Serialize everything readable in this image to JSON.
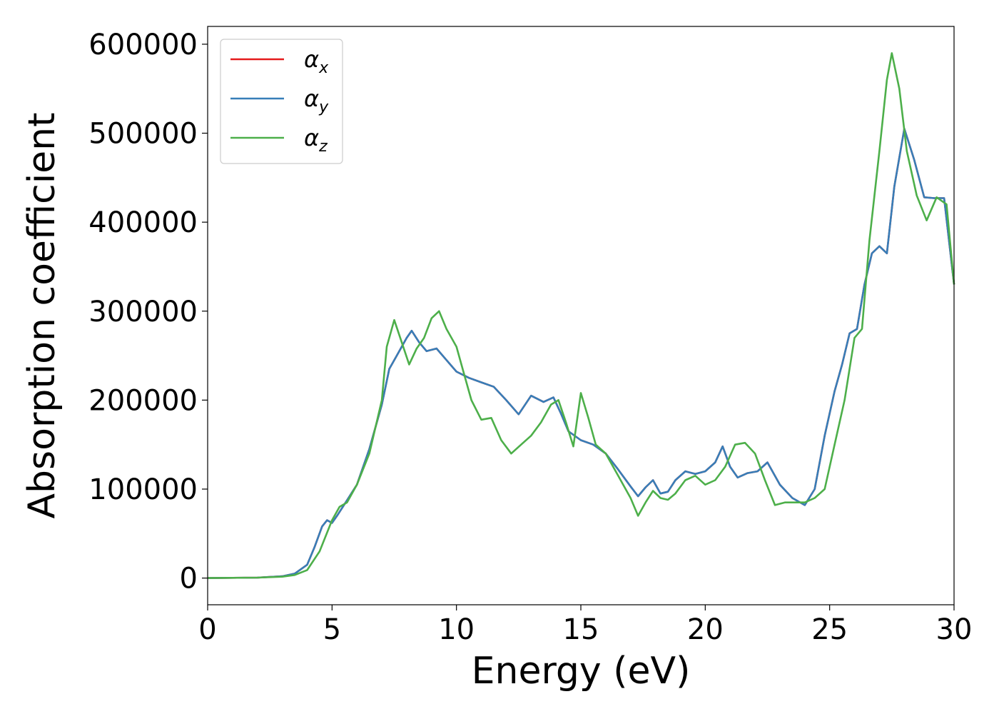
{
  "chart_data": {
    "type": "line",
    "title": "",
    "xlabel": "Energy (eV)",
    "ylabel": "Absorption coefficient",
    "xlim": [
      0,
      30
    ],
    "ylim": [
      -30000,
      620000
    ],
    "xticks": [
      0,
      5,
      10,
      15,
      20,
      25,
      30
    ],
    "yticks": [
      0,
      100000,
      200000,
      300000,
      400000,
      500000,
      600000
    ],
    "xtick_labels": [
      "0",
      "5",
      "10",
      "15",
      "20",
      "25",
      "30"
    ],
    "ytick_labels": [
      "0",
      "100000",
      "200000",
      "300000",
      "400000",
      "500000",
      "600000"
    ],
    "grid": false,
    "legend": {
      "placement": "top-left"
    },
    "series": [
      {
        "name": "α_x",
        "color": "#e41a1c",
        "x": [
          0,
          2,
          3,
          3.5,
          4,
          4.3,
          4.6,
          4.8,
          5.0,
          5.2,
          5.5,
          6.0,
          6.5,
          7.0,
          7.3,
          7.6,
          8.0,
          8.2,
          8.5,
          8.8,
          9.2,
          9.6,
          10,
          10.5,
          11,
          11.5,
          12,
          12.5,
          13,
          13.5,
          13.9,
          14.2,
          14.5,
          15,
          15.5,
          16,
          16.5,
          17,
          17.3,
          17.6,
          17.9,
          18.2,
          18.5,
          18.8,
          19.2,
          19.6,
          20,
          20.4,
          20.7,
          21,
          21.3,
          21.7,
          22.1,
          22.5,
          23,
          23.5,
          24,
          24.4,
          24.8,
          25.2,
          25.5,
          25.8,
          26.1,
          26.4,
          26.7,
          27,
          27.3,
          27.6,
          28,
          28.4,
          28.8,
          29.2,
          29.6,
          30
        ],
        "y": [
          0,
          500,
          2000,
          5000,
          15000,
          35000,
          58000,
          65000,
          62000,
          70000,
          83000,
          105000,
          145000,
          195000,
          235000,
          250000,
          270000,
          278000,
          265000,
          255000,
          258000,
          245000,
          232000,
          225000,
          220000,
          215000,
          200000,
          184000,
          205000,
          198000,
          203000,
          185000,
          165000,
          155000,
          150000,
          140000,
          122000,
          103000,
          92000,
          102000,
          110000,
          95000,
          97000,
          110000,
          120000,
          117000,
          120000,
          130000,
          148000,
          125000,
          113000,
          118000,
          120000,
          130000,
          105000,
          90000,
          82000,
          100000,
          160000,
          210000,
          240000,
          275000,
          280000,
          330000,
          365000,
          373000,
          365000,
          440000,
          505000,
          470000,
          428000,
          427000,
          427000,
          330000
        ]
      },
      {
        "name": "α_y",
        "color": "#377eb8",
        "x": [
          0,
          2,
          3,
          3.5,
          4,
          4.3,
          4.6,
          4.8,
          5.0,
          5.2,
          5.5,
          6.0,
          6.5,
          7.0,
          7.3,
          7.6,
          8.0,
          8.2,
          8.5,
          8.8,
          9.2,
          9.6,
          10,
          10.5,
          11,
          11.5,
          12,
          12.5,
          13,
          13.5,
          13.9,
          14.2,
          14.5,
          15,
          15.5,
          16,
          16.5,
          17,
          17.3,
          17.6,
          17.9,
          18.2,
          18.5,
          18.8,
          19.2,
          19.6,
          20,
          20.4,
          20.7,
          21,
          21.3,
          21.7,
          22.1,
          22.5,
          23,
          23.5,
          24,
          24.4,
          24.8,
          25.2,
          25.5,
          25.8,
          26.1,
          26.4,
          26.7,
          27,
          27.3,
          27.6,
          28,
          28.4,
          28.8,
          29.2,
          29.6,
          30
        ],
        "y": [
          0,
          500,
          2000,
          5000,
          15000,
          35000,
          58000,
          65000,
          62000,
          70000,
          83000,
          105000,
          145000,
          195000,
          235000,
          250000,
          270000,
          278000,
          265000,
          255000,
          258000,
          245000,
          232000,
          225000,
          220000,
          215000,
          200000,
          184000,
          205000,
          198000,
          203000,
          185000,
          165000,
          155000,
          150000,
          140000,
          122000,
          103000,
          92000,
          102000,
          110000,
          95000,
          97000,
          110000,
          120000,
          117000,
          120000,
          130000,
          148000,
          125000,
          113000,
          118000,
          120000,
          130000,
          105000,
          90000,
          82000,
          100000,
          160000,
          210000,
          240000,
          275000,
          280000,
          330000,
          365000,
          373000,
          365000,
          440000,
          505000,
          470000,
          428000,
          427000,
          427000,
          330000
        ]
      },
      {
        "name": "α_z",
        "color": "#4daf4a",
        "x": [
          0,
          2,
          3,
          3.5,
          4,
          4.5,
          5.0,
          5.3,
          5.6,
          6.0,
          6.5,
          7.0,
          7.2,
          7.5,
          7.8,
          8.1,
          8.4,
          8.7,
          9.0,
          9.3,
          9.6,
          10,
          10.3,
          10.6,
          11,
          11.4,
          11.8,
          12.2,
          12.6,
          13,
          13.4,
          13.8,
          14.1,
          14.4,
          14.7,
          15.0,
          15.3,
          15.6,
          16,
          16.5,
          17,
          17.3,
          17.6,
          17.9,
          18.2,
          18.5,
          18.8,
          19.2,
          19.6,
          20,
          20.4,
          20.8,
          21.2,
          21.6,
          22,
          22.4,
          22.8,
          23.2,
          23.6,
          24,
          24.4,
          24.8,
          25.2,
          25.6,
          26,
          26.3,
          26.6,
          27,
          27.3,
          27.5,
          27.8,
          28.1,
          28.5,
          28.9,
          29.3,
          29.7,
          30
        ],
        "y": [
          0,
          500,
          1500,
          3500,
          9000,
          30000,
          65000,
          80000,
          85000,
          105000,
          140000,
          200000,
          260000,
          290000,
          265000,
          240000,
          258000,
          270000,
          292000,
          300000,
          280000,
          260000,
          230000,
          200000,
          178000,
          180000,
          155000,
          140000,
          150000,
          160000,
          175000,
          195000,
          200000,
          175000,
          148000,
          208000,
          180000,
          150000,
          140000,
          115000,
          90000,
          70000,
          85000,
          98000,
          90000,
          88000,
          95000,
          110000,
          115000,
          105000,
          110000,
          125000,
          150000,
          152000,
          140000,
          110000,
          82000,
          85000,
          85000,
          85000,
          90000,
          100000,
          150000,
          200000,
          270000,
          280000,
          380000,
          480000,
          560000,
          590000,
          550000,
          480000,
          430000,
          402000,
          428000,
          420000,
          330000
        ]
      }
    ]
  }
}
